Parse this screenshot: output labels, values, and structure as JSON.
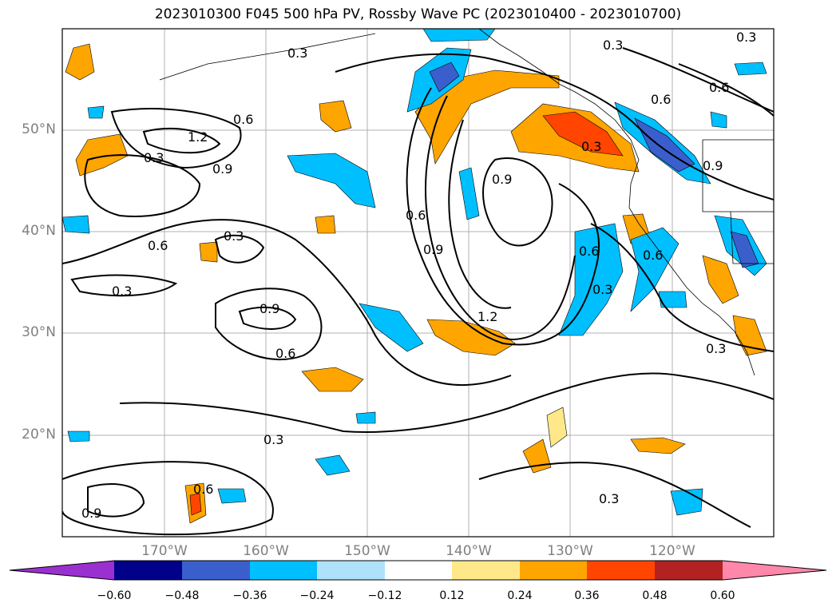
{
  "title": "2023010300 F045 500 hPa PV, Rossby Wave PC (2023010400 - 2023010700)",
  "y_ticks": [
    "50°N",
    "40°N",
    "30°N",
    "20°N"
  ],
  "x_ticks": [
    "170°W",
    "160°W",
    "150°W",
    "140°W",
    "130°W",
    "120°W"
  ],
  "colorbar": {
    "labels": [
      "−0.60",
      "−0.48",
      "−0.36",
      "−0.24",
      "−0.12",
      "0.12",
      "0.24",
      "0.36",
      "0.48",
      "0.60"
    ],
    "colors": [
      "#9b30d0",
      "#00008b",
      "#3a5fcd",
      "#00bfff",
      "#afe2fa",
      "#ffffff",
      "#ffe88a",
      "#ffa500",
      "#ff4500",
      "#b22222",
      "#ff88aa"
    ]
  },
  "contour_labels": [
    "0.3",
    "0.6",
    "0.9",
    "1.2"
  ],
  "map_labels": {
    "c1": "0.6",
    "c2": "1.2",
    "c3": "0.3",
    "c4": "0.9",
    "c5": "0.3",
    "c6": "0.6",
    "c7": "0.3",
    "c8": "0.3",
    "c9": "0.9",
    "c10": "0.6",
    "c11": "0.6",
    "c12": "0.9",
    "c13": "0.9",
    "c14": "1.2",
    "c15": "0.3",
    "c16": "0.3",
    "c17": "0.6",
    "c18": "0.6",
    "c19": "0.3",
    "c20": "0.9",
    "c21": "0.3",
    "c22": "0.6",
    "c23": "0.3",
    "c24": "0.6",
    "c25": "0.3",
    "c26": "0.3",
    "c27": "0.6",
    "c28": "0.9"
  },
  "colors": {
    "negative": "#00bfff",
    "positive": "#ffa500"
  }
}
